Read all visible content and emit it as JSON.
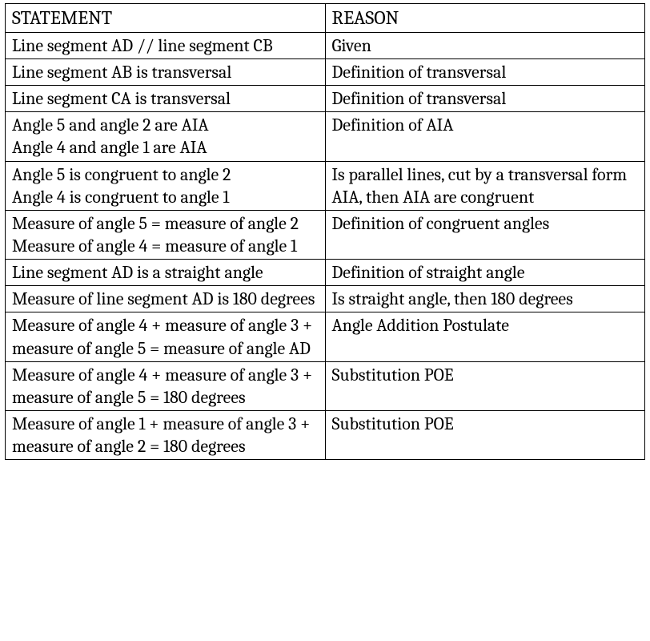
{
  "header": {
    "statement": "STATEMENT",
    "reason": "REASON"
  },
  "rows": [
    {
      "statement": "Line segment AD // line segment CB",
      "reason": "Given"
    },
    {
      "statement": "Line segment AB is transversal",
      "reason": "Definition of transversal"
    },
    {
      "statement": "Line segment CA is transversal",
      "reason": "Definition of transversal"
    },
    {
      "statement": "Angle 5 and angle 2 are AIA\nAngle 4 and angle 1 are AIA",
      "reason": "Definition of AIA"
    },
    {
      "statement": "Angle 5 is congruent to angle 2\nAngle 4 is congruent to angle 1",
      "reason": "Is parallel lines, cut by a transversal form AIA, then AIA are congruent"
    },
    {
      "statement": "Measure of angle 5 = measure of angle 2\nMeasure of angle 4 = measure of angle 1",
      "reason": "Definition of congruent angles"
    },
    {
      "statement": "Line segment AD is a straight angle",
      "reason": "Definition of straight angle"
    },
    {
      "statement": "Measure of line segment AD is 180 degrees",
      "reason": "Is straight angle, then 180 degrees"
    },
    {
      "statement": "Measure of angle 4 + measure of angle 3 + measure of angle 5 = measure of angle AD",
      "reason": "Angle Addition Postulate"
    },
    {
      "statement": "Measure of angle 4 + measure of angle 3 + measure of angle 5 = 180 degrees",
      "reason": "Substitution POE"
    },
    {
      "statement": "Measure of angle 1 + measure of angle 3 + measure of angle 2 = 180 degrees",
      "reason": "Substitution POE"
    }
  ],
  "style": {
    "columns": [
      "STATEMENT",
      "REASON"
    ],
    "col_widths_pct": [
      50,
      50
    ],
    "border_color": "#000000",
    "background_color": "#ffffff",
    "text_color": "#000000",
    "header_fontsize": 24,
    "body_fontsize": 22,
    "font_family": "Cambria, Georgia, Times New Roman, serif"
  }
}
